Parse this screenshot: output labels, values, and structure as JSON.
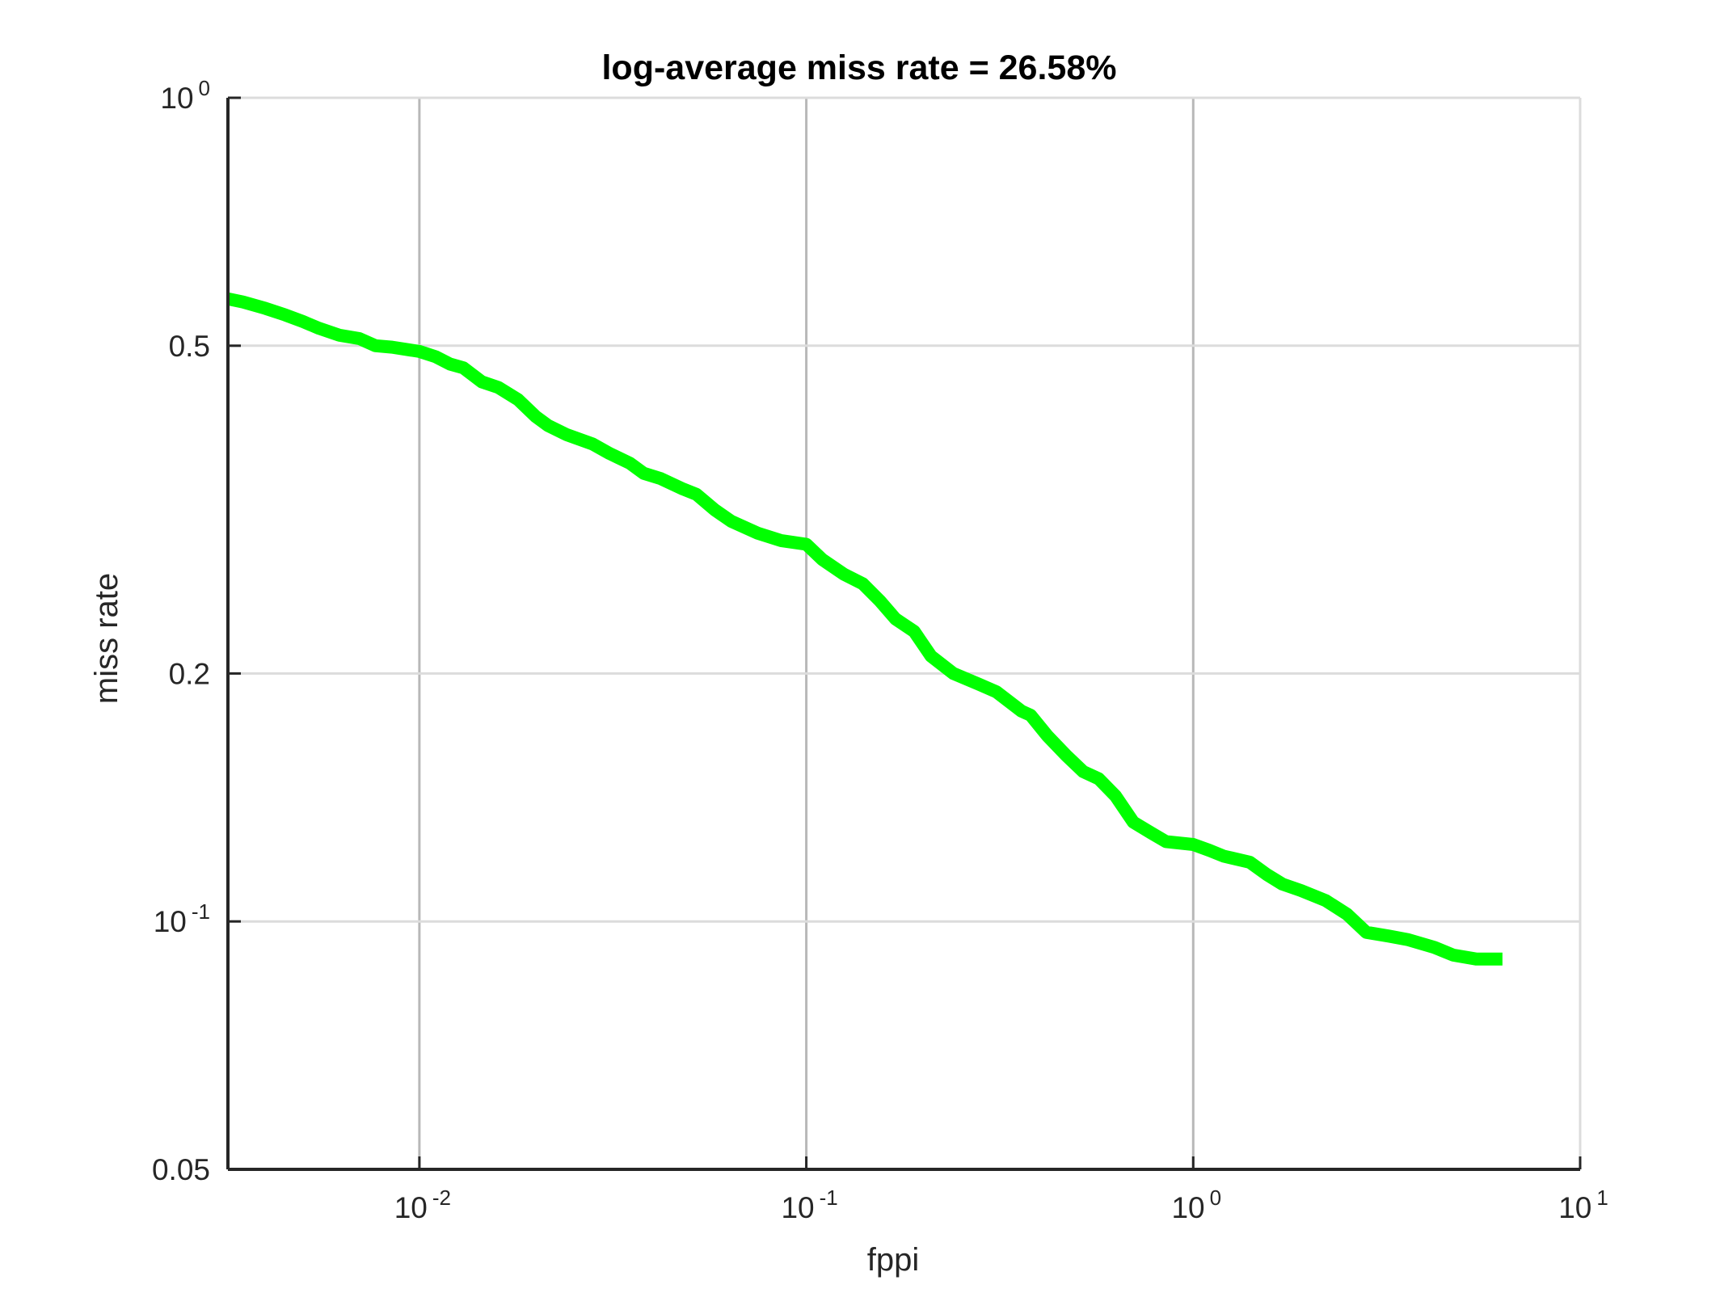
{
  "chart_data": {
    "type": "line",
    "title": "log-average miss rate = 26.58%",
    "xlabel": "fppi",
    "ylabel": "miss rate",
    "x_scale": "log",
    "y_scale": "log",
    "xlim": [
      0.0032,
      10
    ],
    "ylim": [
      0.05,
      1
    ],
    "x_ticks": [
      {
        "value": 0.01,
        "base": "10",
        "exp": "-2"
      },
      {
        "value": 0.1,
        "base": "10",
        "exp": "-1"
      },
      {
        "value": 1,
        "base": "10",
        "exp": "0"
      },
      {
        "value": 10,
        "base": "10",
        "exp": "1"
      }
    ],
    "y_ticks": [
      {
        "value": 0.05,
        "label": "0.05"
      },
      {
        "value": 0.1,
        "base": "10",
        "exp": "-1"
      },
      {
        "value": 0.2,
        "label": "0.2"
      },
      {
        "value": 0.5,
        "label": "0.5"
      },
      {
        "value": 1,
        "base": "10",
        "exp": "0"
      }
    ],
    "grid": true,
    "series": [
      {
        "color": "#00ff00",
        "x": [
          0.0032,
          0.0035,
          0.004,
          0.0045,
          0.005,
          0.0055,
          0.0062,
          0.007,
          0.0077,
          0.0085,
          0.01,
          0.011,
          0.012,
          0.013,
          0.0145,
          0.016,
          0.018,
          0.02,
          0.0215,
          0.024,
          0.028,
          0.031,
          0.035,
          0.038,
          0.042,
          0.048,
          0.052,
          0.058,
          0.064,
          0.075,
          0.086,
          0.1,
          0.11,
          0.125,
          0.14,
          0.155,
          0.17,
          0.19,
          0.21,
          0.24,
          0.28,
          0.31,
          0.36,
          0.38,
          0.42,
          0.47,
          0.52,
          0.57,
          0.63,
          0.7,
          0.78,
          0.85,
          1.0,
          1.1,
          1.2,
          1.4,
          1.55,
          1.7,
          1.9,
          2.2,
          2.5,
          2.8,
          3.2,
          3.6,
          4.2,
          4.7,
          5.4,
          6.3
        ],
        "y": [
          0.57,
          0.565,
          0.555,
          0.545,
          0.535,
          0.525,
          0.515,
          0.51,
          0.5,
          0.498,
          0.492,
          0.485,
          0.475,
          0.47,
          0.452,
          0.445,
          0.43,
          0.41,
          0.4,
          0.39,
          0.38,
          0.37,
          0.36,
          0.35,
          0.345,
          0.335,
          0.33,
          0.316,
          0.306,
          0.296,
          0.29,
          0.287,
          0.275,
          0.264,
          0.257,
          0.245,
          0.233,
          0.225,
          0.21,
          0.2,
          0.194,
          0.19,
          0.18,
          0.178,
          0.168,
          0.159,
          0.152,
          0.149,
          0.142,
          0.132,
          0.128,
          0.125,
          0.124,
          0.122,
          0.12,
          0.118,
          0.114,
          0.111,
          0.109,
          0.106,
          0.102,
          0.097,
          0.096,
          0.095,
          0.093,
          0.091,
          0.09,
          0.09
        ]
      }
    ]
  }
}
